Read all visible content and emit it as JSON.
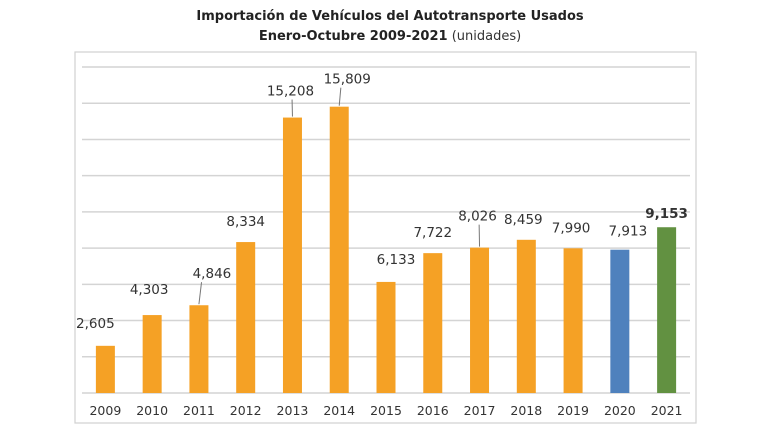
{
  "chart_data": {
    "type": "bar",
    "title": "Importación de Vehículos del Autotransporte Usados",
    "subtitle": "Enero-Octubre 2009-2021",
    "subtitle_unit": "(unidades)",
    "xlabel": "",
    "ylabel": "",
    "ylim": [
      0,
      18000
    ],
    "grid_step": 2000,
    "grid": true,
    "categories": [
      "2009",
      "2010",
      "2011",
      "2012",
      "2013",
      "2014",
      "2015",
      "2016",
      "2017",
      "2018",
      "2019",
      "2020",
      "2021"
    ],
    "values": [
      2605,
      4303,
      4846,
      8334,
      15208,
      15809,
      6133,
      7722,
      8026,
      8459,
      7990,
      7913,
      9153
    ],
    "value_labels": [
      "2,605",
      "4,303",
      "4,846",
      "8,334",
      "15,208",
      "15,809",
      "6,133",
      "7,722",
      "8,026",
      "8,459",
      "7,990",
      "7,913",
      "9,153"
    ],
    "colors": [
      "#f5a125",
      "#f5a125",
      "#f5a125",
      "#f5a125",
      "#f5a125",
      "#f5a125",
      "#f5a125",
      "#f5a125",
      "#f5a125",
      "#f5a125",
      "#f5a125",
      "#4f81bd",
      "#629141"
    ],
    "highlight_label_index": 12
  }
}
